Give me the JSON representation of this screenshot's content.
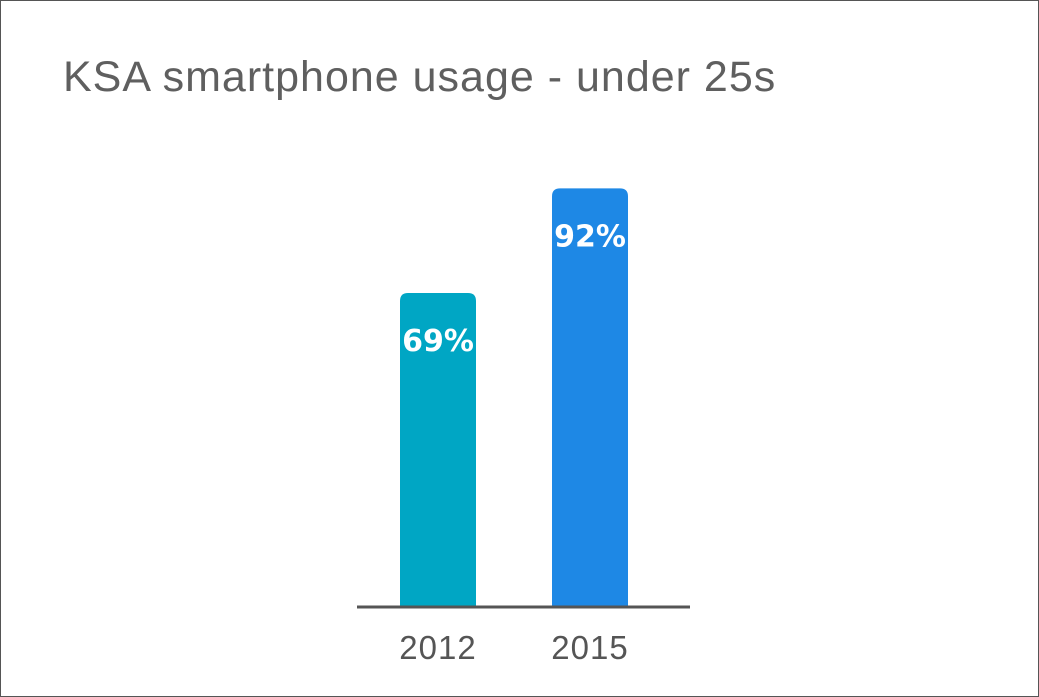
{
  "chart_data": {
    "type": "bar",
    "title": "KSA smartphone usage - under 25s",
    "xlabel": "",
    "ylabel": "",
    "categories": [
      "2012",
      "2015"
    ],
    "values": [
      69,
      92
    ],
    "value_labels": [
      "69%",
      "92%"
    ],
    "ylim": [
      0,
      100
    ],
    "grid": false,
    "legend": "none",
    "colors": [
      "#00a6c4",
      "#1e88e5"
    ],
    "axis_color": "#555555"
  }
}
